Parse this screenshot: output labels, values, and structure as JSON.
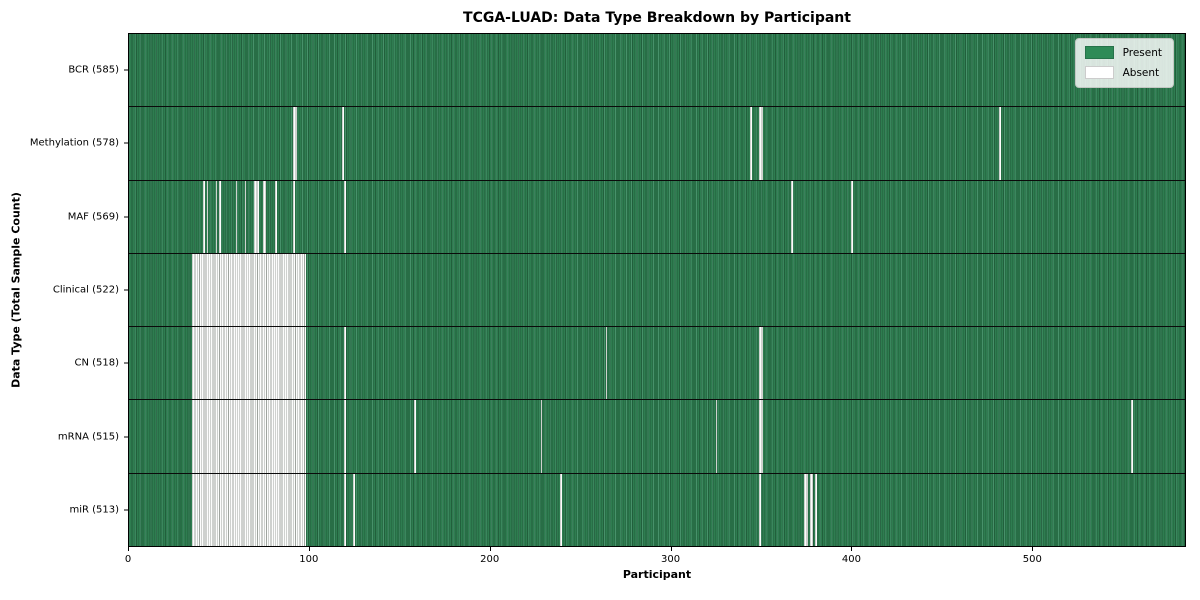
{
  "title": "TCGA-LUAD: Data Type Breakdown by Participant",
  "colors": {
    "present_green": "#2e8b57",
    "present_stripe_dark": "#1d5737",
    "absent_white": "#ffffff",
    "axis_black": "#000000",
    "legend_background": "#e4e9e3"
  },
  "chart_data": {
    "type": "heatmap",
    "title": "TCGA-LUAD: Data Type Breakdown by Participant",
    "xlabel": "Participant",
    "ylabel": "Data Type (Total Sample Count)",
    "xlim": [
      0,
      585
    ],
    "x_ticks": [
      0,
      100,
      200,
      300,
      400,
      500
    ],
    "total_participants": 585,
    "grid": false,
    "legend_position": "upper right",
    "legend": [
      {
        "label": "Present",
        "color": "#2e8b57",
        "border": "#26724a"
      },
      {
        "label": "Absent",
        "color": "#ffffff",
        "border": "#cccccc"
      }
    ],
    "rows": [
      {
        "name": "BCR",
        "label": "BCR (585)",
        "present_count": 585,
        "absent_segments": []
      },
      {
        "name": "Methylation",
        "label": "Methylation (578)",
        "present_count": 578,
        "absent_segments": [
          [
            91,
            92
          ],
          [
            118,
            118
          ],
          [
            344,
            344
          ],
          [
            349,
            350
          ],
          [
            482,
            482
          ]
        ]
      },
      {
        "name": "MAF",
        "label": "MAF (569)",
        "present_count": 569,
        "absent_segments": [
          [
            41,
            41
          ],
          [
            43,
            43
          ],
          [
            48,
            48
          ],
          [
            50,
            50
          ],
          [
            59,
            59
          ],
          [
            64,
            64
          ],
          [
            69,
            71
          ],
          [
            74,
            75
          ],
          [
            81,
            81
          ],
          [
            91,
            91
          ],
          [
            119,
            119
          ],
          [
            367,
            367
          ],
          [
            400,
            400
          ]
        ]
      },
      {
        "name": "Clinical",
        "label": "Clinical (522)",
        "present_count": 522,
        "absent_segments": [
          [
            35,
            97
          ]
        ]
      },
      {
        "name": "CN",
        "label": "CN (518)",
        "present_count": 518,
        "absent_segments": [
          [
            35,
            97
          ],
          [
            119,
            119
          ],
          [
            264,
            264
          ],
          [
            349,
            350
          ]
        ]
      },
      {
        "name": "mRNA",
        "label": "mRNA (515)",
        "present_count": 515,
        "absent_segments": [
          [
            35,
            97
          ],
          [
            119,
            119
          ],
          [
            158,
            158
          ],
          [
            228,
            228
          ],
          [
            325,
            325
          ],
          [
            349,
            350
          ],
          [
            555,
            555
          ]
        ]
      },
      {
        "name": "miR",
        "label": "miR (513)",
        "present_count": 513,
        "absent_segments": [
          [
            35,
            97
          ],
          [
            119,
            119
          ],
          [
            124,
            124
          ],
          [
            239,
            239
          ],
          [
            349,
            349
          ],
          [
            374,
            375
          ],
          [
            377,
            378
          ],
          [
            380,
            380
          ]
        ]
      }
    ]
  }
}
